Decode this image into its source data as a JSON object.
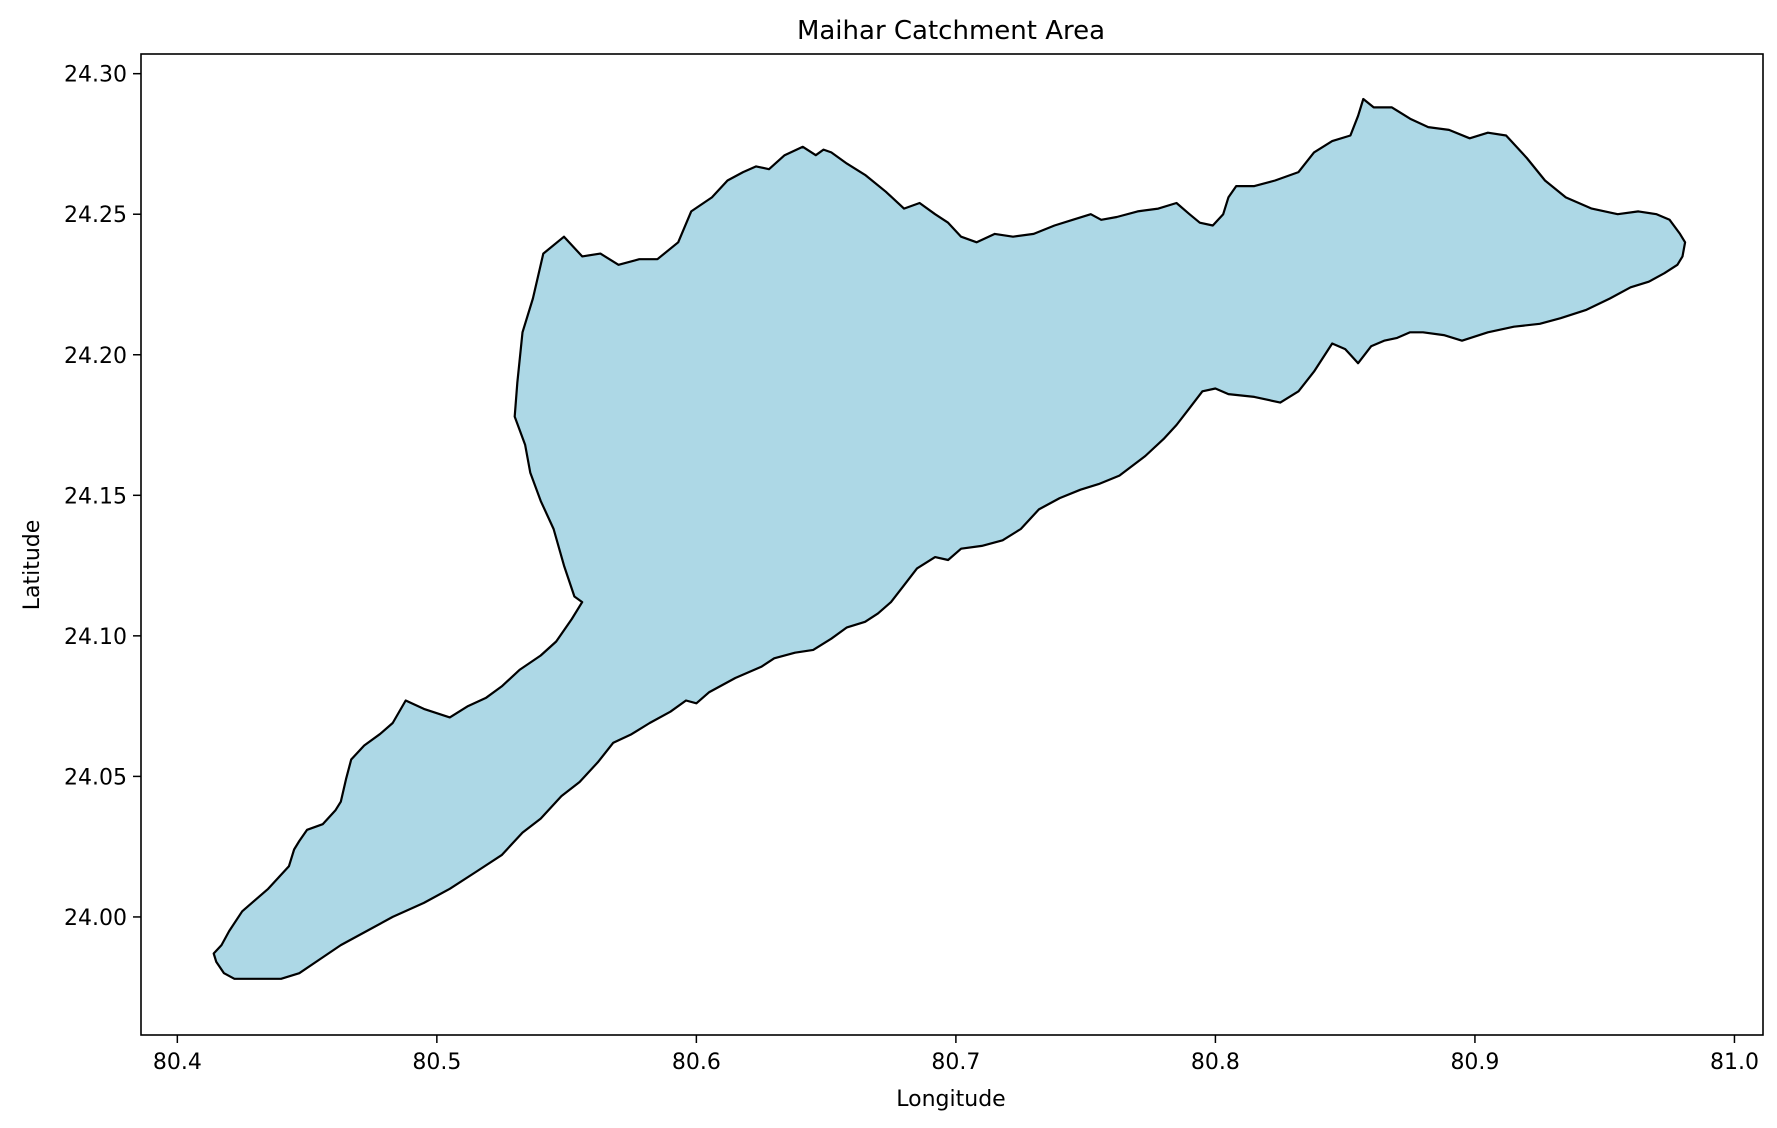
{
  "chart_data": {
    "type": "map",
    "title": "Maihar Catchment Area",
    "xlabel": "Longitude",
    "ylabel": "Latitude",
    "xlim": [
      80.386,
      81.011
    ],
    "ylim": [
      23.958,
      24.307
    ],
    "xticks": [
      80.4,
      80.5,
      80.6,
      80.7,
      80.8,
      80.9,
      81.0
    ],
    "xtick_labels": [
      "80.4",
      "80.5",
      "80.6",
      "80.7",
      "80.8",
      "80.9",
      "81.0"
    ],
    "yticks": [
      24.0,
      24.05,
      24.1,
      24.15,
      24.2,
      24.25,
      24.3
    ],
    "ytick_labels": [
      "24.00",
      "24.05",
      "24.10",
      "24.15",
      "24.20",
      "24.25",
      "24.30"
    ],
    "grid": false,
    "fill_color": "#add8e6",
    "edge_color": "#000000",
    "polygon": {
      "name": "Maihar catchment boundary",
      "lon": [
        80.44,
        80.447,
        80.455,
        80.463,
        80.473,
        80.483,
        80.495,
        80.505,
        80.515,
        80.525,
        80.533,
        80.54,
        80.548,
        80.555,
        80.562,
        80.568,
        80.575,
        80.582,
        80.59,
        80.596,
        80.6,
        80.605,
        80.615,
        80.625,
        80.63,
        80.638,
        80.645,
        80.652,
        80.658,
        80.665,
        80.67,
        80.675,
        80.68,
        80.685,
        80.692,
        80.697,
        80.702,
        80.71,
        80.718,
        80.725,
        80.732,
        80.74,
        80.748,
        80.755,
        80.763,
        80.773,
        80.78,
        80.785,
        80.79,
        80.795,
        80.8,
        80.805,
        80.815,
        80.825,
        80.832,
        80.838,
        80.845,
        80.85,
        80.852,
        80.855,
        80.86,
        80.865,
        80.87,
        80.875,
        80.88,
        80.888,
        80.895,
        80.905,
        80.915,
        80.925,
        80.933,
        80.943,
        80.952,
        80.96,
        80.967,
        80.973,
        80.978,
        80.98,
        80.981,
        80.979,
        80.975,
        80.97,
        80.963,
        80.955,
        80.945,
        80.935,
        80.927,
        80.92,
        80.912,
        80.905,
        80.898,
        80.89,
        80.882,
        80.875,
        80.868,
        80.861,
        80.857,
        80.855,
        80.852,
        80.845,
        80.838,
        80.832,
        80.823,
        80.815,
        80.808,
        80.805,
        80.803,
        80.799,
        80.794,
        80.79,
        80.785,
        80.778,
        80.77,
        80.762,
        80.756,
        80.752,
        80.745,
        80.738,
        80.73,
        80.722,
        80.715,
        80.708,
        80.702,
        80.697,
        80.692,
        80.686,
        80.68,
        80.673,
        80.665,
        80.658,
        80.652,
        80.649,
        80.646,
        80.641,
        80.634,
        80.628,
        80.623,
        80.618,
        80.612,
        80.606,
        80.598,
        80.593,
        80.585,
        80.578,
        80.57,
        80.563,
        80.556,
        80.549,
        80.541,
        80.537,
        80.533,
        80.531,
        80.53,
        80.534,
        80.536,
        80.54,
        80.545,
        80.549,
        80.553,
        80.556,
        80.552,
        80.546,
        80.54,
        80.532,
        80.525,
        80.519,
        80.512,
        80.505,
        80.495,
        80.488,
        80.483,
        80.478,
        80.472,
        80.467,
        80.465,
        80.463,
        80.461,
        80.456,
        80.45,
        80.447,
        80.445,
        80.443,
        80.435,
        80.425,
        80.42,
        80.417,
        80.414,
        80.415,
        80.418,
        80.422,
        80.426,
        80.43,
        80.435,
        80.44
      ],
      "lat": [
        23.978,
        23.98,
        23.985,
        23.99,
        23.995,
        24.0,
        24.005,
        24.01,
        24.016,
        24.022,
        24.03,
        24.035,
        24.043,
        24.048,
        24.055,
        24.062,
        24.065,
        24.069,
        24.073,
        24.077,
        24.076,
        24.08,
        24.085,
        24.089,
        24.092,
        24.094,
        24.095,
        24.099,
        24.103,
        24.105,
        24.108,
        24.112,
        24.118,
        24.124,
        24.128,
        24.127,
        24.131,
        24.132,
        24.134,
        24.138,
        24.145,
        24.149,
        24.152,
        24.154,
        24.157,
        24.164,
        24.17,
        24.175,
        24.181,
        24.187,
        24.188,
        24.186,
        24.185,
        24.183,
        24.187,
        24.194,
        24.204,
        24.202,
        24.2,
        24.197,
        24.203,
        24.205,
        24.206,
        24.208,
        24.208,
        24.207,
        24.205,
        24.208,
        24.21,
        24.211,
        24.213,
        24.216,
        24.22,
        24.224,
        24.226,
        24.229,
        24.232,
        24.235,
        24.24,
        24.243,
        24.248,
        24.25,
        24.251,
        24.25,
        24.252,
        24.256,
        24.262,
        24.27,
        24.278,
        24.279,
        24.277,
        24.28,
        24.281,
        24.284,
        24.288,
        24.288,
        24.291,
        24.285,
        24.278,
        24.276,
        24.272,
        24.265,
        24.262,
        24.26,
        24.26,
        24.256,
        24.25,
        24.246,
        24.247,
        24.25,
        24.254,
        24.252,
        24.251,
        24.249,
        24.248,
        24.25,
        24.248,
        24.246,
        24.243,
        24.242,
        24.243,
        24.24,
        24.242,
        24.247,
        24.25,
        24.254,
        24.252,
        24.258,
        24.264,
        24.268,
        24.272,
        24.273,
        24.271,
        24.274,
        24.271,
        24.266,
        24.267,
        24.265,
        24.262,
        24.256,
        24.251,
        24.24,
        24.234,
        24.234,
        24.232,
        24.236,
        24.235,
        24.242,
        24.236,
        24.22,
        24.208,
        24.19,
        24.178,
        24.168,
        24.158,
        24.148,
        24.138,
        24.125,
        24.114,
        24.112,
        24.106,
        24.098,
        24.093,
        24.088,
        24.082,
        24.078,
        24.075,
        24.071,
        24.074,
        24.077,
        24.069,
        24.065,
        24.061,
        24.056,
        24.049,
        24.041,
        24.038,
        24.033,
        24.031,
        24.027,
        24.024,
        24.018,
        24.01,
        24.002,
        23.995,
        23.99,
        23.987,
        23.984,
        23.98,
        23.978
      ]
    }
  }
}
